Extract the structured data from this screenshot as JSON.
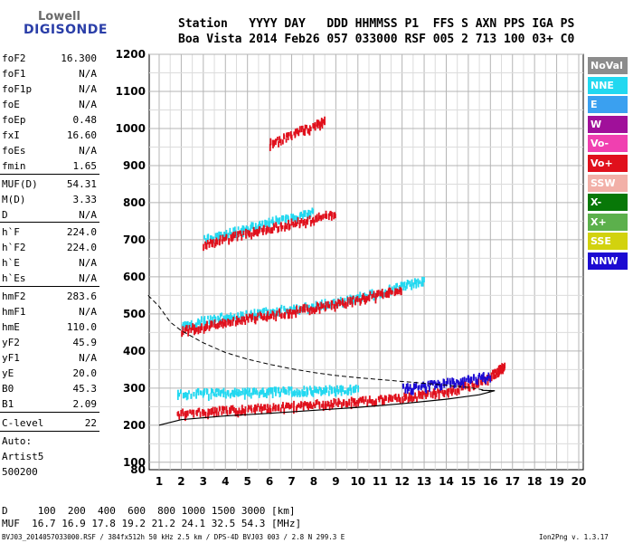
{
  "logo": {
    "line1": "Lowell",
    "line2": "DIGISONDE"
  },
  "header": {
    "labels": "Station   YYYY DAY   DDD HHMMSS P1  FFS S AXN PPS IGA PS",
    "values": "Boa Vista 2014 Feb26 057 033000 RSF 005 2 713 100 03+ C0"
  },
  "params": [
    {
      "k": "foF2",
      "v": "16.300"
    },
    {
      "k": "foF1",
      "v": "N/A"
    },
    {
      "k": "foF1p",
      "v": "N/A"
    },
    {
      "k": "foE",
      "v": "N/A"
    },
    {
      "k": "foEp",
      "v": "0.48"
    },
    {
      "k": "fxI",
      "v": "16.60"
    },
    {
      "k": "foEs",
      "v": "N/A"
    },
    {
      "k": "fmin",
      "v": "1.65"
    },
    {
      "k": "MUF(D)",
      "v": "54.31"
    },
    {
      "k": "M(D)",
      "v": "3.33"
    },
    {
      "k": "D",
      "v": "N/A"
    },
    {
      "k": "h`F",
      "v": "224.0"
    },
    {
      "k": "h`F2",
      "v": "224.0"
    },
    {
      "k": "h`E",
      "v": "N/A"
    },
    {
      "k": "h`Es",
      "v": "N/A"
    },
    {
      "k": "hmF2",
      "v": "283.6"
    },
    {
      "k": "hmF1",
      "v": "N/A"
    },
    {
      "k": "hmE",
      "v": "110.0"
    },
    {
      "k": "yF2",
      "v": "45.9"
    },
    {
      "k": "yF1",
      "v": "N/A"
    },
    {
      "k": "yE",
      "v": "20.0"
    },
    {
      "k": "B0",
      "v": "45.3"
    },
    {
      "k": "B1",
      "v": "2.09"
    },
    {
      "k": "C-level",
      "v": "22"
    }
  ],
  "scaling": {
    "mode": "Auto:",
    "software": "Artist5",
    "version": "500200"
  },
  "legend": [
    {
      "label": "NoVal",
      "color": "#8c8c8c"
    },
    {
      "label": "NNE",
      "color": "#22d8f0"
    },
    {
      "label": "E",
      "color": "#3aa0f0"
    },
    {
      "label": "W",
      "color": "#a0109a"
    },
    {
      "label": "Vo-",
      "color": "#f040b0"
    },
    {
      "label": "Vo+",
      "color": "#e0101c"
    },
    {
      "label": "SSW",
      "color": "#f2b0a8"
    },
    {
      "label": "X-",
      "color": "#087808"
    },
    {
      "label": "X+",
      "color": "#5cb04c"
    },
    {
      "label": "SSE",
      "color": "#d2d20e"
    },
    {
      "label": "NNW",
      "color": "#1c0ad2"
    }
  ],
  "footer": {
    "d_line": "D     100  200  400  600  800 1000 1500 3000 [km]",
    "muf_line": "MUF  16.7 16.9 17.8 19.2 21.2 24.1 32.5 54.3 [MHz]",
    "file_line": "BVJ03_2014057033000.RSF / 384fx512h 50 kHz 2.5 km / DPS-4D BVJ03 003 / 2.8 N 299.3 E",
    "version": "Ion2Png v. 1.3.17"
  },
  "chart_data": {
    "type": "scatter",
    "xlim": [
      0.5,
      20
    ],
    "ylim": [
      80,
      1200
    ],
    "x_ticks": [
      1,
      2,
      3,
      4,
      5,
      6,
      7,
      8,
      9,
      10,
      11,
      12,
      13,
      14,
      15,
      16,
      17,
      18,
      19,
      20
    ],
    "y_ticks": [
      80,
      100,
      200,
      300,
      400,
      500,
      600,
      700,
      800,
      900,
      1000,
      1100,
      1200
    ],
    "grid": true,
    "series": [
      {
        "name": "Vo+",
        "color": "#e0101c",
        "points": [
          [
            1.8,
            232
          ],
          [
            3,
            236
          ],
          [
            4,
            240
          ],
          [
            5,
            244
          ],
          [
            6,
            248
          ],
          [
            7,
            252
          ],
          [
            8,
            256
          ],
          [
            9,
            260
          ],
          [
            10,
            265
          ],
          [
            11,
            270
          ],
          [
            12,
            275
          ],
          [
            13,
            283
          ],
          [
            14,
            293
          ],
          [
            15,
            308
          ],
          [
            15.8,
            325
          ],
          [
            16.3,
            345
          ],
          [
            16.6,
            362
          ]
        ]
      },
      {
        "name": "NNE",
        "color": "#22d8f0",
        "points": [
          [
            1.8,
            285
          ],
          [
            3,
            287
          ],
          [
            4,
            288
          ],
          [
            5,
            290
          ],
          [
            6,
            291
          ],
          [
            7,
            292
          ],
          [
            8,
            294
          ],
          [
            9,
            296
          ],
          [
            10,
            298
          ]
        ]
      },
      {
        "name": "NNW",
        "color": "#1c0ad2",
        "points": [
          [
            12,
            300
          ],
          [
            13,
            306
          ],
          [
            14,
            314
          ],
          [
            15,
            322
          ],
          [
            16,
            335
          ]
        ]
      },
      {
        "name": "NNE",
        "color": "#22d8f0",
        "points": [
          [
            2,
            470
          ],
          [
            3,
            482
          ],
          [
            4,
            492
          ],
          [
            5,
            500
          ],
          [
            6,
            508
          ],
          [
            7,
            516
          ],
          [
            8,
            523
          ],
          [
            9,
            532
          ],
          [
            10,
            545
          ],
          [
            11,
            560
          ],
          [
            12,
            576
          ],
          [
            13,
            592
          ]
        ]
      },
      {
        "name": "Vo+",
        "color": "#e0101c",
        "points": [
          [
            2,
            458
          ],
          [
            3,
            468
          ],
          [
            4,
            478
          ],
          [
            5,
            488
          ],
          [
            6,
            498
          ],
          [
            7,
            508
          ],
          [
            8,
            518
          ],
          [
            9,
            528
          ],
          [
            10,
            540
          ],
          [
            11,
            554
          ],
          [
            12,
            570
          ]
        ]
      },
      {
        "name": "NNE",
        "color": "#22d8f0",
        "points": [
          [
            3,
            700
          ],
          [
            4,
            716
          ],
          [
            5,
            732
          ],
          [
            6,
            748
          ],
          [
            7,
            762
          ],
          [
            8,
            775
          ]
        ]
      },
      {
        "name": "Vo+",
        "color": "#e0101c",
        "points": [
          [
            3,
            688
          ],
          [
            4,
            704
          ],
          [
            5,
            718
          ],
          [
            6,
            732
          ],
          [
            7,
            745
          ],
          [
            8,
            758
          ],
          [
            9,
            772
          ]
        ]
      },
      {
        "name": "Vo+",
        "color": "#e0101c",
        "points": [
          [
            6,
            960
          ],
          [
            7,
            985
          ],
          [
            8,
            1008
          ],
          [
            8.5,
            1020
          ]
        ]
      }
    ],
    "profile": {
      "points": [
        [
          1,
          200
        ],
        [
          2,
          215
        ],
        [
          4,
          225
        ],
        [
          6,
          232
        ],
        [
          8,
          240
        ],
        [
          10,
          248
        ],
        [
          12,
          258
        ],
        [
          14,
          270
        ],
        [
          15.5,
          282
        ],
        [
          16.2,
          293
        ],
        [
          15.6,
          294
        ]
      ]
    },
    "muf_curve": {
      "points": [
        [
          0.5,
          550
        ],
        [
          1,
          520
        ],
        [
          1.5,
          478
        ],
        [
          2,
          455
        ],
        [
          3,
          422
        ],
        [
          4,
          396
        ],
        [
          5,
          378
        ],
        [
          6,
          364
        ],
        [
          7,
          352
        ],
        [
          8,
          342
        ],
        [
          9,
          334
        ],
        [
          10,
          328
        ],
        [
          11,
          323
        ],
        [
          12,
          318
        ],
        [
          13,
          313
        ],
        [
          14,
          308
        ],
        [
          15,
          302
        ],
        [
          16,
          292
        ]
      ]
    }
  }
}
